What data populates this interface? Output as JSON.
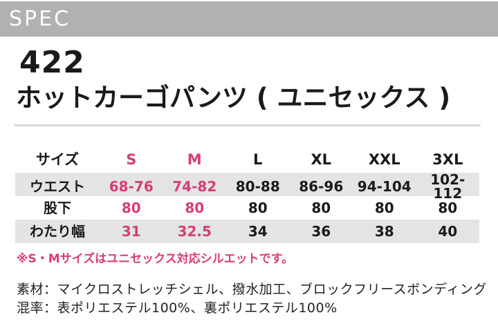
{
  "banner": {
    "label": "SPEC"
  },
  "product": {
    "code": "422",
    "name": "ホットカーゴパンツ ( ユニセックス )"
  },
  "colors": {
    "banner_gray": "#b1b1b1",
    "stripe_gray": "#e4e4e4",
    "divider_gray": "#d8d8d8",
    "accent_pink": "#d63d78",
    "text_black": "#1a1a1a"
  },
  "spec_table": {
    "size_label": "サイズ",
    "sizes": [
      "S",
      "M",
      "L",
      "XL",
      "XXL",
      "3XL"
    ],
    "highlighted_sizes": [
      "S",
      "M"
    ],
    "rows": [
      {
        "label": "ウエスト",
        "values": [
          "68-76",
          "74-82",
          "80-88",
          "86-96",
          "94-104",
          "102-112"
        ]
      },
      {
        "label": "股下",
        "values": [
          "80",
          "80",
          "80",
          "80",
          "80",
          "80"
        ]
      },
      {
        "label": "わたり幅",
        "values": [
          "31",
          "32.5",
          "34",
          "36",
          "38",
          "40"
        ]
      }
    ]
  },
  "note": "※S・Mサイズはユニセックス対応シルエットです。",
  "details": {
    "material": "素材：マイクロストレッチシェル、撥水加工、ブロックフリースボンディング",
    "composition": "混率：表ポリエステル100%、裏ポリエステル100%"
  }
}
